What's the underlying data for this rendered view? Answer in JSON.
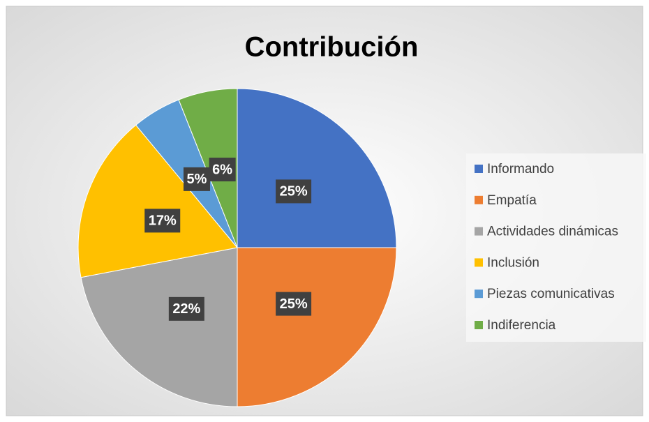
{
  "chart_data": {
    "type": "pie",
    "title": "Contribución",
    "categories": [
      "Informando",
      "Empatía",
      "Actividades dinámicas",
      "Inclusión",
      "Piezas comunicativas",
      "Indiferencia"
    ],
    "values": [
      25,
      25,
      22,
      17,
      5,
      6
    ],
    "value_labels": [
      "25%",
      "25%",
      "22%",
      "17%",
      "5%",
      "6%"
    ],
    "colors": [
      "#4472c4",
      "#ed7d31",
      "#a5a5a5",
      "#ffc000",
      "#5b9bd5",
      "#70ad47"
    ],
    "legend": "right"
  }
}
